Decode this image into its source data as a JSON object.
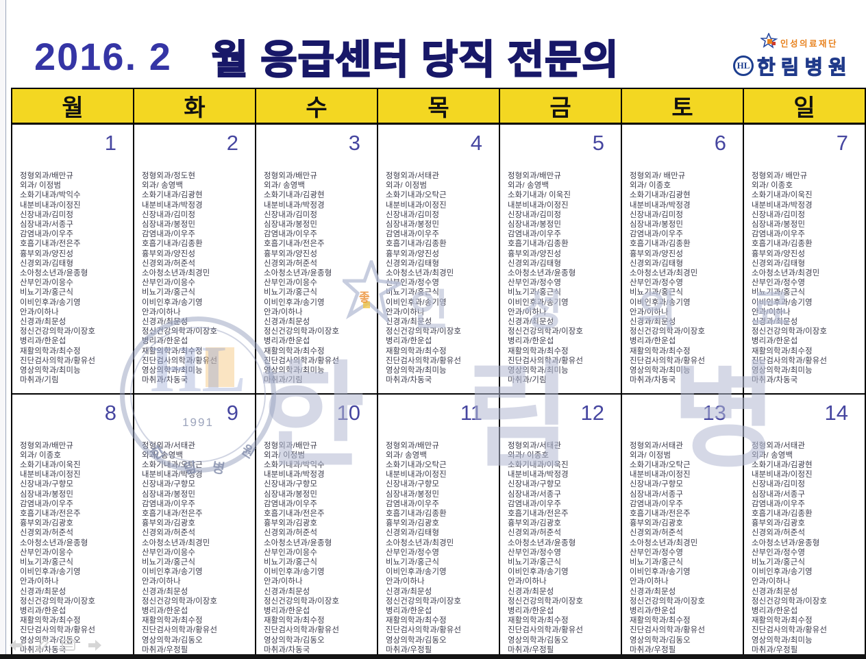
{
  "title": {
    "year_month": "2016. 2",
    "heading": "월 응급센터 당직 전문의"
  },
  "brand": {
    "foundation": "인성의료재단",
    "hospital": "한림병원",
    "badge": "HL"
  },
  "weekdays": [
    "월",
    "화",
    "수",
    "목",
    "금",
    "토",
    "일"
  ],
  "weeks": [
    [
      {
        "date": "1",
        "lines": [
          "정형외과/배만규",
          "외과/ 이정범",
          "소화기내과/박익수",
          "내분비내과/이정진",
          "신장내과/김미정",
          "심장내과/서종구",
          "감염내과/이우주",
          "호흡기내과/전은주",
          "흉부외과/양진성",
          "신경외과/김태형",
          "소아청소년과/윤종형",
          "산부인과/이응수",
          "비뇨기과/홍근식",
          "이비인후과/송기영",
          "안과/이하나",
          "신경과/최문성",
          "정신건강의학과/이장호",
          "병리과/한운섭",
          "재활의학과/최수정",
          "진단검사의학과/황유선",
          "영상의학과/최미능",
          "마취과/기림"
        ]
      },
      {
        "date": "2",
        "lines": [
          "정형외과/정도현",
          "외과/ 송영백",
          "소화기내과/김광현",
          "내분비내과/박정경",
          "신장내과/김미정",
          "심장내과/봉정민",
          "감염내과/이우주",
          "호흡기내과/김종환",
          "흉부외과/양진성",
          "신경외과/허준석",
          "소아청소년과/최경민",
          "산부인과/이응수",
          "비뇨기과/홍근식",
          "이비인후과/송기영",
          "안과/이하나",
          "신경과/최문성",
          "정신건강의학과/이장호",
          "병리과/한운섭",
          "재활의학과/최수정",
          "진단검사의학과/황유선",
          "영상의학과/최미능",
          "마취과/차동국"
        ]
      },
      {
        "date": "3",
        "lines": [
          "정형외과/배만규",
          "외과/ 송영백",
          "소화기내과/김광현",
          "내분비내과/박정경",
          "신장내과/김미정",
          "심장내과/봉정민",
          "감염내과/이우주",
          "호흡기내과/전은주",
          "흉부외과/양진성",
          "신경외과/허준석",
          "소아청소년과/윤종형",
          "산부인과/이응수",
          "비뇨기과/홍근식",
          "이비인후과/송기영",
          "안과/이하나",
          "신경과/최문성",
          "정신건강의학과/이장호",
          "병리과/한운섭",
          "재활의학과/최수정",
          "진단검사의학과/황유선",
          "영상의학과/최미능",
          "마취과/기림"
        ]
      },
      {
        "date": "4",
        "lines": [
          "정형외과/서태관",
          "외과/ 이정범",
          "소화기내과/오탁근",
          "내분비내과/이정진",
          "신장내과/김미정",
          "심장내과/봉정민",
          "감염내과/이우주",
          "호흡기내과/김종환",
          "흉부외과/양진성",
          "신경외과/김태형",
          "소아청소년과/최경민",
          "산부인과/정수영",
          "비뇨기과/홍근식",
          "이비인후과/송기영",
          "안과/이하나",
          "신경과/최문성",
          "정신건강의학과/이장호",
          "병리과/한운섭",
          "재활의학과/최수정",
          "진단검사의학과/황유선",
          "영상의학과/최미능",
          "마취과/차동국"
        ]
      },
      {
        "date": "5",
        "lines": [
          "정형외과/배만규",
          "외과/ 송영백",
          "소화기내과/ 이욱진",
          "내분비내과/이정진",
          "신장내과/김미정",
          "심장내과/봉정민",
          "감염내과/이우주",
          "호흡기내과/김종환",
          "흉부외과/양진성",
          "신경외과/김태형",
          "소아청소년과/윤종형",
          "산부인과/정수영",
          "비뇨기과/홍근식",
          "이비인후과/송기영",
          "안과/이하나",
          "신경과/최문성",
          "정신건강의학과/이장호",
          "병리과/한운섭",
          "재활의학과/최수정",
          "진단검사의학과/황유선",
          "영상의학과/최미능",
          "마취과/기림"
        ]
      },
      {
        "date": "6",
        "lines": [
          "정형외과/ 배만규",
          "외과/ 이종호",
          "소화기내과/김광현",
          "내분비내과/박정경",
          "신장내과/김미정",
          "심장내과/봉정민",
          "감염내과/이우주",
          "호흡기내과/김종환",
          "흉부외과/양진성",
          "신경외과/김태형",
          "소아청소년과/최경민",
          "산부인과/정수영",
          "비뇨기과/홍근식",
          "이비인후과/송기영",
          "안과/이하나",
          "신경과/최문성",
          "정신건강의학과/이장호",
          "병리과/한운섭",
          "재활의학과/최수정",
          "진단검사의학과/황유선",
          "영상의학과/최미능",
          "마취과/차동국"
        ]
      },
      {
        "date": "7",
        "lines": [
          "정형외과/ 배만규",
          "외과/ 이종호",
          "소화기내과/이욱진",
          "내분비내과/박정경",
          "신장내과/김미정",
          "심장내과/봉정민",
          "감염내과/이우주",
          "호흡기내과/김종환",
          "흉부외과/양진성",
          "신경외과/김태형",
          "소아청소년과/최경민",
          "산부인과/정수영",
          "비뇨기과/홍근식",
          "이비인후과/송기영",
          "안과/이하나",
          "신경과/최문성",
          "정신건강의학과/이장호",
          "병리과/한운섭",
          "재활의학과/최수정",
          "진단검사의학과/황유선",
          "영상의학과/최미능",
          "마취과/차동국"
        ]
      }
    ],
    [
      {
        "date": "8",
        "lines": [
          "정형외과/배만규",
          "외과/ 이종호",
          "소화기내과/이욱진",
          "내분비내과/이정진",
          "신장내과/구향모",
          "심장내과/봉정민",
          "감염내과/이우주",
          "호흡기내과/전은주",
          "흉부외과/김광호",
          "신경외과/허준석",
          "소아청소년과/윤종형",
          "산부인과/이응수",
          "비뇨기과/홍근식",
          "이비인후과/송기영",
          "안과/이하나",
          "신경과/최문성",
          "정신건강의학과/이장호",
          "병리과/한운섭",
          "재활의학과/최수정",
          "진단검사의학과/황유선",
          "영상의학과/김동오",
          "마취과/차동국"
        ]
      },
      {
        "date": "9",
        "lines": [
          "정형외과/서태관",
          "외과/ 송영백",
          "소화기내과/오탁근",
          "내분비내과/박정경",
          "신장내과/구향모",
          "심장내과/봉정민",
          "감염내과/이우주",
          "호흡기내과/전은주",
          "흉부외과/김광호",
          "신경외과/허준석",
          "소아청소년과/최경민",
          "산부인과/이응수",
          "비뇨기과/홍근식",
          "이비인후과/송기영",
          "안과/이하나",
          "신경과/최문성",
          "정신건강의학과/이장호",
          "병리과/한운섭",
          "재활의학과/최수정",
          "진단검사의학과/황유선",
          "영상의학과/김동오",
          "마취과/우정필"
        ]
      },
      {
        "date": "10",
        "lines": [
          "정형외과/배만규",
          "외과/ 이정범",
          "소화기내과/박익수",
          "내분비내과/박정경",
          "신장내과/구향모",
          "심장내과/봉정민",
          "감염내과/이우주",
          "호흡기내과/전은주",
          "흉부외과/김광호",
          "신경외과/허준석",
          "소아청소년과/윤종형",
          "산부인과/이응수",
          "비뇨기과/홍근식",
          "이비인후과/송기영",
          "안과/이하나",
          "신경과/최문성",
          "정신건강의학과/이장호",
          "병리과/한운섭",
          "재활의학과/최수정",
          "진단검사의학과/황유선",
          "영상의학과/김동오",
          "마취과/차동국"
        ]
      },
      {
        "date": "11",
        "lines": [
          "정형외과/배만규",
          "외과/ 송영백",
          "소화기내과/오탁근",
          "내분비내과/이정진",
          "신장내과/구향모",
          "심장내과/봉정민",
          "감염내과/이우주",
          "호흡기내과/김종환",
          "흉부외과/김광호",
          "신경외과/김태형",
          "소아청소년과/최경민",
          "산부인과/정수영",
          "비뇨기과/홍근식",
          "이비인후과/송기영",
          "안과/이하나",
          "신경과/최문성",
          "정신건강의학과/이장호",
          "병리과/한운섭",
          "재활의학과/최수정",
          "진단검사의학과/황유선",
          "영상의학과/김동오",
          "마취과/우정필"
        ]
      },
      {
        "date": "12",
        "lines": [
          "정형외과/서태관",
          "외과/ 이종호",
          "소화기내과/이욱진",
          "내분비내과/박정경",
          "신장내과/구향모",
          "심장내과/서종구",
          "감염내과/이우주",
          "호흡기내과/전은주",
          "흉부외과/김광호",
          "신경외과/허준석",
          "소아청소년과/윤종형",
          "산부인과/정수영",
          "비뇨기과/홍근식",
          "이비인후과/송기영",
          "안과/이하나",
          "신경과/최문성",
          "정신건강의학과/이장호",
          "병리과/한운섭",
          "재활의학과/최수정",
          "진단검사의학과/황유선",
          "영상의학과/김동오",
          "마취과/우정필"
        ]
      },
      {
        "date": "13",
        "lines": [
          "정형외과/서태관",
          "외과/ 이정범",
          "소화기내과/오탁근",
          "내분비내과/이정진",
          "신장내과/구향모",
          "심장내과/서종구",
          "감염내과/이우주",
          "호흡기내과/전은주",
          "흉부외과/김광호",
          "신경외과/허준석",
          "소아청소년과/최경민",
          "산부인과/정수영",
          "비뇨기과/홍근식",
          "이비인후과/송기영",
          "안과/이하나",
          "신경과/최문성",
          "정신건강의학과/이장호",
          "병리과/한운섭",
          "재활의학과/최수정",
          "진단검사의학과/황유선",
          "영상의학과/김동오",
          "마취과/우정필"
        ]
      },
      {
        "date": "14",
        "lines": [
          "정형외과/서태관",
          "외과/ 송영백",
          "소화기내과/김광현",
          "내분비내과/이정진",
          "신장내과/김미정",
          "심장내과/서종구",
          "감염내과/이우주",
          "호흡기내과/김종환",
          "흉부외과/김광호",
          "신경외과/허준석",
          "소아청소년과/윤종형",
          "산부인과/정수영",
          "비뇨기과/홍근식",
          "이비인후과/송기영",
          "안과/이하나",
          "신경과/최문성",
          "정신건강의학과/이장호",
          "병리과/한운섭",
          "재활의학과/최수정",
          "진단검사의학과/황유선",
          "영상의학과/최미능",
          "마취과/우정필"
        ]
      }
    ]
  ],
  "watermark": {
    "foundation": "인 성 의 료 재 단",
    "hospital": "한 림 병 원",
    "badge": "HL",
    "year": "1991",
    "ring_letters": [
      "한",
      "림",
      "병",
      "원"
    ],
    "star_char": "좋"
  },
  "colors": {
    "header_bg": "#f3d722",
    "title_blue": "#3535a5",
    "title_navy": "#181868",
    "date_number": "#4646a0",
    "brand_navy": "#203a8a",
    "brand_orange": "#e8821e"
  }
}
